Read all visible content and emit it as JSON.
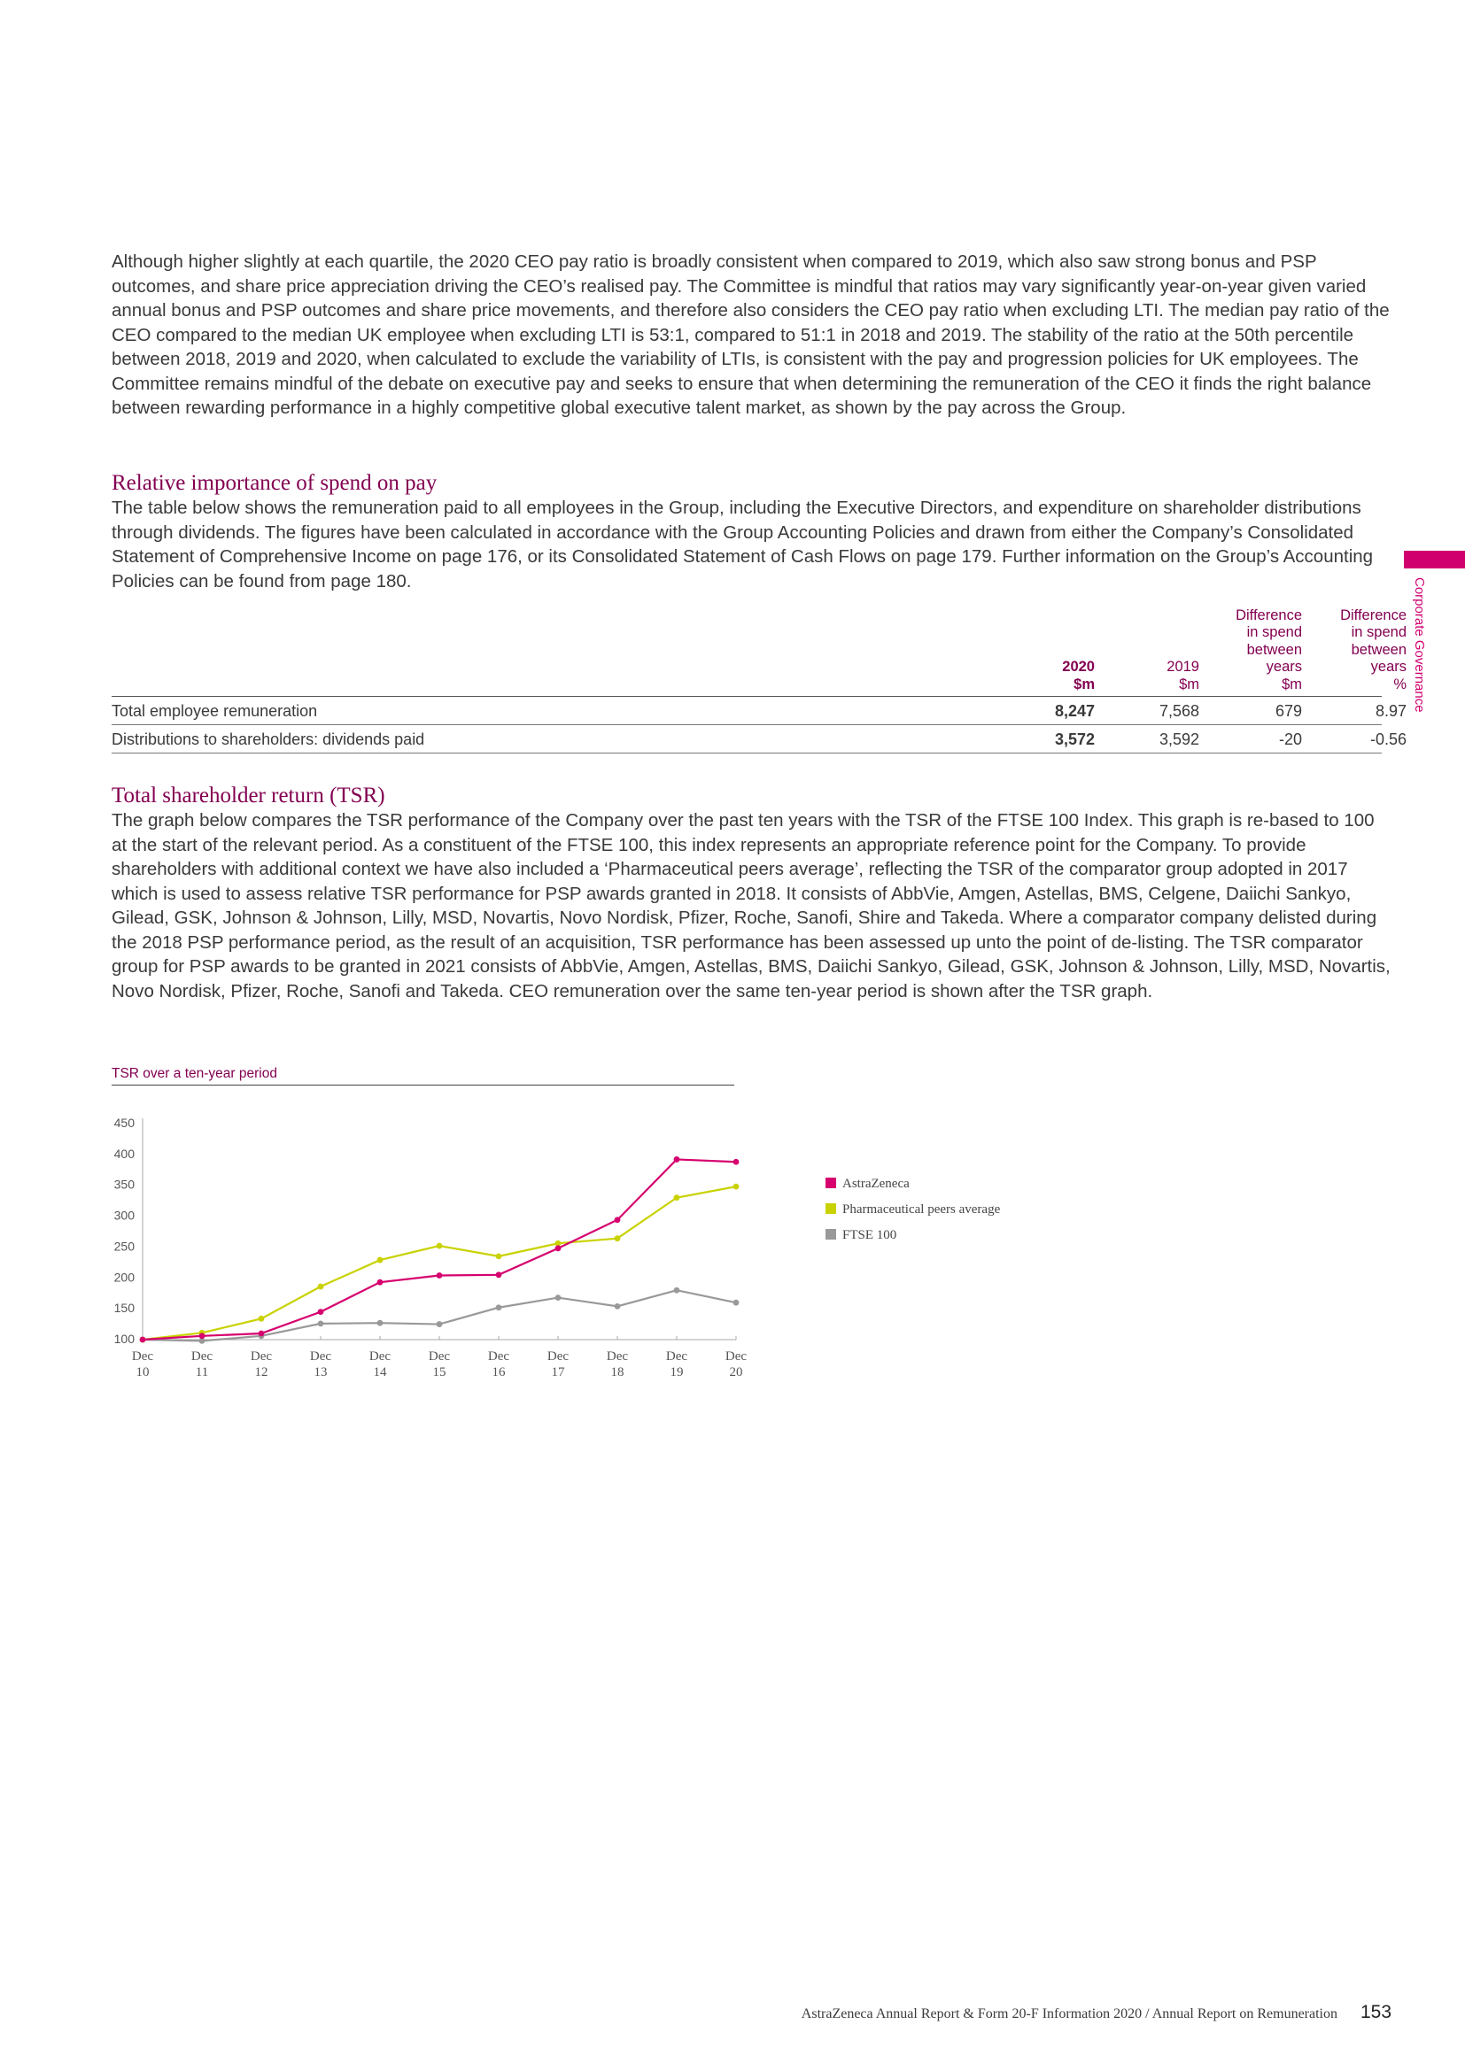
{
  "colors": {
    "accent": "#d0006f",
    "heading": "#830051",
    "astrazeneca": "#d6006e",
    "peers": "#c9d200",
    "ftse": "#999999"
  },
  "intro_paragraph": "Although higher slightly at each quartile, the 2020 CEO pay ratio is broadly consistent when compared to 2019, which also saw strong bonus and PSP outcomes, and share price appreciation driving the CEO’s realised pay. The Committee is mindful that ratios may vary significantly year-on-year given varied annual bonus and PSP outcomes and share price movements, and therefore also considers the CEO pay ratio when excluding LTI. The median pay ratio of the CEO compared to the median UK employee when excluding LTI is 53:1, compared to 51:1 in 2018 and 2019. The stability of the ratio at the 50th percentile between 2018, 2019 and 2020, when calculated to exclude the variability of LTIs, is consistent with the pay and progression policies for UK employees. The Committee remains mindful of the debate on executive pay and seeks to ensure that when determining the remuneration of the CEO it finds the right balance between rewarding performance in a highly competitive global executive talent market, as shown by the pay across the Group.",
  "section_spend": {
    "heading": "Relative importance of spend on pay",
    "paragraph": "The table below shows the remuneration paid to all employees in the Group, including the Executive Directors, and expenditure on shareholder distributions through dividends. The figures have been calculated in accordance with the Group Accounting Policies and drawn from either the Company’s Consolidated Statement of Comprehensive Income on page 176, or its Consolidated Statement of Cash Flows on page 179. Further information on the Group’s Accounting Policies can be found from page 180."
  },
  "spend_table": {
    "headers": [
      {
        "l1": "",
        "l2": "",
        "l3": "",
        "l4": "2020",
        "l5": "$m"
      },
      {
        "l1": "",
        "l2": "",
        "l3": "",
        "l4": "2019",
        "l5": "$m"
      },
      {
        "l1": "Difference",
        "l2": "in spend",
        "l3": "between",
        "l4": "years",
        "l5": "$m"
      },
      {
        "l1": "Difference",
        "l2": "in spend",
        "l3": "between",
        "l4": "years",
        "l5": "%"
      }
    ],
    "rows": [
      {
        "label": "Total employee remuneration",
        "v2020": "8,247",
        "v2019": "7,568",
        "diff": "679",
        "pct": "8.97"
      },
      {
        "label": "Distributions to shareholders: dividends paid",
        "v2020": "3,572",
        "v2019": "3,592",
        "diff": "-20",
        "pct": "-0.56"
      }
    ]
  },
  "section_tsr": {
    "heading": "Total shareholder return (TSR)",
    "paragraph": "The graph below compares the TSR performance of the Company over the past ten years with the TSR of the FTSE 100 Index. This graph is re-based to 100 at the start of the relevant period. As a constituent of the FTSE 100, this index represents an appropriate reference point for the Company. To provide shareholders with additional context we have also included a ‘Pharmaceutical peers average’, reflecting the TSR of the comparator group adopted in 2017 which is used to assess relative TSR performance for PSP awards granted in 2018. It consists of AbbVie, Amgen, Astellas, BMS, Celgene, Daiichi Sankyo, Gilead, GSK, Johnson & Johnson, Lilly, MSD, Novartis, Novo Nordisk, Pfizer, Roche, Sanofi, Shire and Takeda. Where a comparator company delisted during the 2018 PSP performance period, as the result of an acquisition, TSR performance has been assessed up unto the point of de-listing. The TSR comparator group for PSP awards to be granted in 2021 consists of AbbVie, Amgen, Astellas, BMS, Daiichi Sankyo, Gilead, GSK, Johnson & Johnson, Lilly, MSD, Novartis, Novo Nordisk, Pfizer, Roche, Sanofi and Takeda. CEO remuneration over the same ten-year period is shown after the TSR graph."
  },
  "chart_data": {
    "type": "line",
    "title": "TSR over a ten-year period",
    "categories": [
      "Dec 10",
      "Dec 11",
      "Dec 12",
      "Dec 13",
      "Dec 14",
      "Dec 15",
      "Dec 16",
      "Dec 17",
      "Dec 18",
      "Dec 19",
      "Dec 20"
    ],
    "category_lines": [
      [
        "Dec",
        "10"
      ],
      [
        "Dec",
        "11"
      ],
      [
        "Dec",
        "12"
      ],
      [
        "Dec",
        "13"
      ],
      [
        "Dec",
        "14"
      ],
      [
        "Dec",
        "15"
      ],
      [
        "Dec",
        "16"
      ],
      [
        "Dec",
        "17"
      ],
      [
        "Dec",
        "18"
      ],
      [
        "Dec",
        "19"
      ],
      [
        "Dec",
        "20"
      ]
    ],
    "ylim": [
      100,
      450
    ],
    "yticks": [
      100,
      150,
      200,
      250,
      300,
      350,
      400,
      450
    ],
    "grid": false,
    "legend_position": "right",
    "series": [
      {
        "name": "AstraZeneca",
        "color": "#d6006e",
        "values": [
          100,
          106,
          110,
          145,
          193,
          204,
          205,
          248,
          294,
          392,
          388
        ]
      },
      {
        "name": "Pharmaceutical peers average",
        "color": "#c9d200",
        "values": [
          100,
          111,
          134,
          186,
          229,
          252,
          235,
          256,
          264,
          330,
          348
        ]
      },
      {
        "name": "FTSE 100",
        "color": "#999999",
        "values": [
          100,
          98,
          106,
          126,
          127,
          125,
          152,
          168,
          154,
          180,
          160
        ]
      }
    ]
  },
  "footer": {
    "text": "AstraZeneca Annual Report & Form 20-F Information 2020 / Annual Report on Remuneration",
    "page_number": "153"
  },
  "side_label": "Corporate Governance"
}
